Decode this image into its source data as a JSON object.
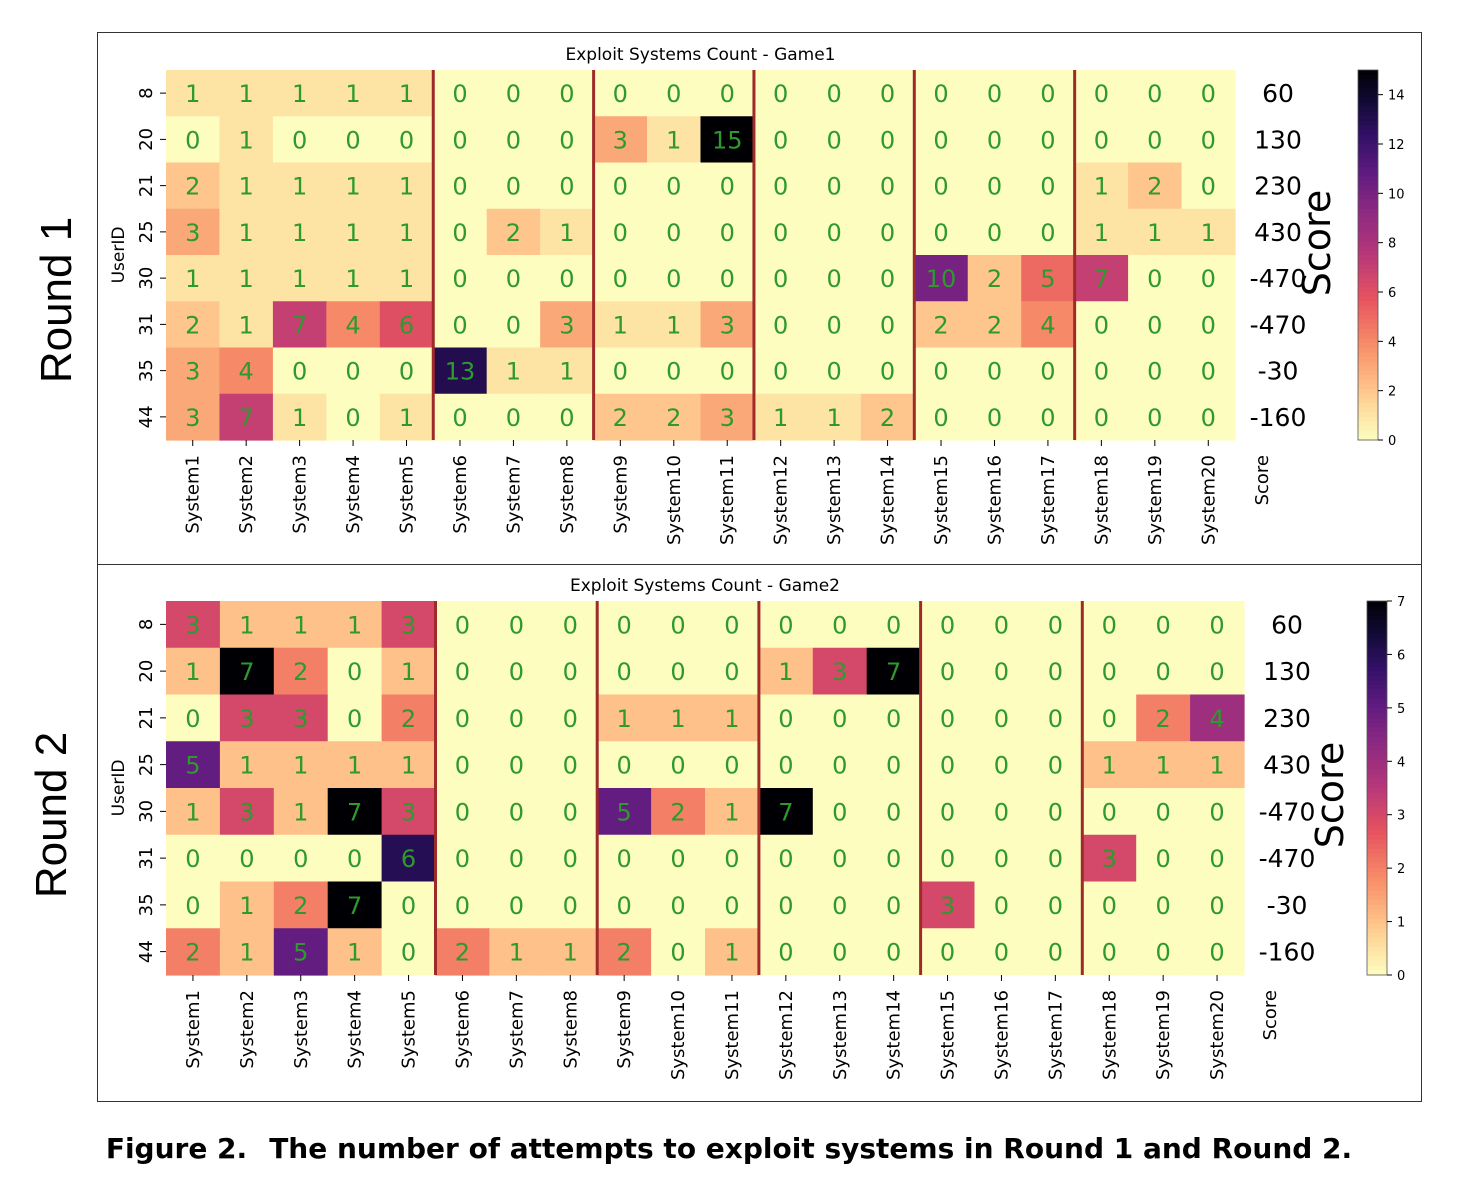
{
  "caption": {
    "label": "Figure 2.",
    "text": "The number of attempts to exploit systems in Round 1 and Round 2."
  },
  "chart_data": [
    {
      "type": "heatmap",
      "round_label": "Round 1",
      "title": "Exploit Systems Count - Game1",
      "ylabel": "UserID",
      "score_label": "Score",
      "score_column_label": "Score",
      "colormap": "magma_r",
      "colorbar": {
        "min": 0,
        "max": 15,
        "ticks": [
          0,
          2,
          4,
          6,
          8,
          10,
          12,
          14
        ]
      },
      "group_separators_after_column": [
        5,
        8,
        11,
        14,
        17
      ],
      "x_categories": [
        "System1",
        "System2",
        "System3",
        "System4",
        "System5",
        "System6",
        "System7",
        "System8",
        "System9",
        "System10",
        "System11",
        "System12",
        "System13",
        "System14",
        "System15",
        "System16",
        "System17",
        "System18",
        "System19",
        "System20"
      ],
      "y_categories": [
        "8",
        "20",
        "21",
        "25",
        "30",
        "31",
        "35",
        "44"
      ],
      "values": [
        [
          1,
          1,
          1,
          1,
          1,
          0,
          0,
          0,
          0,
          0,
          0,
          0,
          0,
          0,
          0,
          0,
          0,
          0,
          0,
          0
        ],
        [
          0,
          1,
          0,
          0,
          0,
          0,
          0,
          0,
          3,
          1,
          15,
          0,
          0,
          0,
          0,
          0,
          0,
          0,
          0,
          0
        ],
        [
          2,
          1,
          1,
          1,
          1,
          0,
          0,
          0,
          0,
          0,
          0,
          0,
          0,
          0,
          0,
          0,
          0,
          1,
          2,
          0
        ],
        [
          3,
          1,
          1,
          1,
          1,
          0,
          2,
          1,
          0,
          0,
          0,
          0,
          0,
          0,
          0,
          0,
          0,
          1,
          1,
          1
        ],
        [
          1,
          1,
          1,
          1,
          1,
          0,
          0,
          0,
          0,
          0,
          0,
          0,
          0,
          0,
          10,
          2,
          5,
          7,
          0,
          0
        ],
        [
          2,
          1,
          7,
          4,
          6,
          0,
          0,
          3,
          1,
          1,
          3,
          0,
          0,
          0,
          2,
          2,
          4,
          0,
          0,
          0
        ],
        [
          3,
          4,
          0,
          0,
          0,
          13,
          1,
          1,
          0,
          0,
          0,
          0,
          0,
          0,
          0,
          0,
          0,
          0,
          0,
          0
        ],
        [
          3,
          7,
          1,
          0,
          1,
          0,
          0,
          0,
          2,
          2,
          3,
          1,
          1,
          2,
          0,
          0,
          0,
          0,
          0,
          0
        ]
      ],
      "scores": [
        "60",
        "130",
        "230",
        "430",
        "-470",
        "-470",
        "-30",
        "-160"
      ]
    },
    {
      "type": "heatmap",
      "round_label": "Round 2",
      "title": "Exploit Systems Count - Game2",
      "ylabel": "UserID",
      "score_label": "Score",
      "score_column_label": "Score",
      "colormap": "magma_r",
      "colorbar": {
        "min": 0,
        "max": 7,
        "ticks": [
          0,
          1,
          2,
          3,
          4,
          5,
          6,
          7
        ]
      },
      "group_separators_after_column": [
        5,
        8,
        11,
        14,
        17
      ],
      "x_categories": [
        "System1",
        "System2",
        "System3",
        "System4",
        "System5",
        "System6",
        "System7",
        "System8",
        "System9",
        "System10",
        "System11",
        "System12",
        "System13",
        "System14",
        "System15",
        "System16",
        "System17",
        "System18",
        "System19",
        "System20"
      ],
      "y_categories": [
        "8",
        "20",
        "21",
        "25",
        "30",
        "31",
        "35",
        "44"
      ],
      "values": [
        [
          3,
          1,
          1,
          1,
          3,
          0,
          0,
          0,
          0,
          0,
          0,
          0,
          0,
          0,
          0,
          0,
          0,
          0,
          0,
          0
        ],
        [
          1,
          7,
          2,
          0,
          1,
          0,
          0,
          0,
          0,
          0,
          0,
          1,
          3,
          7,
          0,
          0,
          0,
          0,
          0,
          0
        ],
        [
          0,
          3,
          3,
          0,
          2,
          0,
          0,
          0,
          1,
          1,
          1,
          0,
          0,
          0,
          0,
          0,
          0,
          0,
          2,
          4
        ],
        [
          5,
          1,
          1,
          1,
          1,
          0,
          0,
          0,
          0,
          0,
          0,
          0,
          0,
          0,
          0,
          0,
          0,
          1,
          1,
          1
        ],
        [
          1,
          3,
          1,
          7,
          3,
          0,
          0,
          0,
          5,
          2,
          1,
          7,
          0,
          0,
          0,
          0,
          0,
          0,
          0,
          0
        ],
        [
          0,
          0,
          0,
          0,
          6,
          0,
          0,
          0,
          0,
          0,
          0,
          0,
          0,
          0,
          0,
          0,
          0,
          3,
          0,
          0
        ],
        [
          0,
          1,
          2,
          7,
          0,
          0,
          0,
          0,
          0,
          0,
          0,
          0,
          0,
          0,
          3,
          0,
          0,
          0,
          0,
          0
        ],
        [
          2,
          1,
          5,
          1,
          0,
          2,
          1,
          1,
          2,
          0,
          1,
          0,
          0,
          0,
          0,
          0,
          0,
          0,
          0,
          0
        ]
      ],
      "scores": [
        "60",
        "130",
        "230",
        "430",
        "-470",
        "-470",
        "-30",
        "-160"
      ]
    }
  ]
}
